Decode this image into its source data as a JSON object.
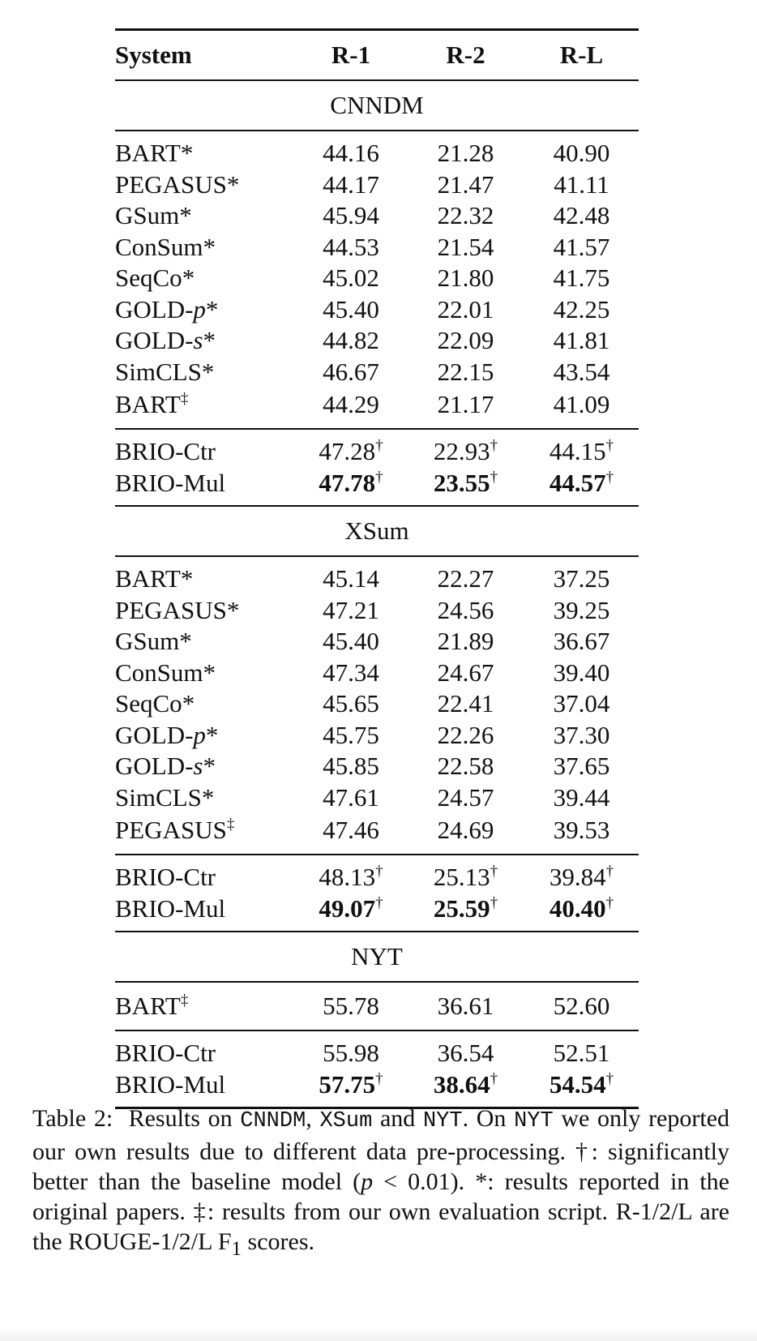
{
  "table": {
    "headers": [
      "System",
      "R-1",
      "R-2",
      "R-L"
    ],
    "sections": [
      {
        "name": "CNNDM",
        "baselines": [
          {
            "system": "BART",
            "system_ital": "",
            "mark": "*",
            "r1": "44.16",
            "r2": "21.28",
            "rl": "40.90"
          },
          {
            "system": "PEGASUS",
            "system_ital": "",
            "mark": "*",
            "r1": "44.17",
            "r2": "21.47",
            "rl": "41.11"
          },
          {
            "system": "GSum",
            "system_ital": "",
            "mark": "*",
            "r1": "45.94",
            "r2": "22.32",
            "rl": "42.48"
          },
          {
            "system": "ConSum",
            "system_ital": "",
            "mark": "*",
            "r1": "44.53",
            "r2": "21.54",
            "rl": "41.57"
          },
          {
            "system": "SeqCo",
            "system_ital": "",
            "mark": "*",
            "r1": "45.02",
            "r2": "21.80",
            "rl": "41.75"
          },
          {
            "system": "GOLD-",
            "system_ital": "p",
            "mark": "*",
            "r1": "45.40",
            "r2": "22.01",
            "rl": "42.25"
          },
          {
            "system": "GOLD-",
            "system_ital": "s",
            "mark": "*",
            "r1": "44.82",
            "r2": "22.09",
            "rl": "41.81"
          },
          {
            "system": "SimCLS",
            "system_ital": "",
            "mark": "*",
            "r1": "46.67",
            "r2": "22.15",
            "rl": "43.54"
          },
          {
            "system": "BART",
            "system_ital": "",
            "mark": "‡",
            "r1": "44.29",
            "r2": "21.17",
            "rl": "41.09"
          }
        ],
        "ours": [
          {
            "system": "BRIO-Ctr",
            "bold": false,
            "r1": "47.28",
            "r2": "22.93",
            "rl": "44.15",
            "dagger": "†"
          },
          {
            "system": "BRIO-Mul",
            "bold": true,
            "r1": "47.78",
            "r2": "23.55",
            "rl": "44.57",
            "dagger": "†"
          }
        ]
      },
      {
        "name": "XSum",
        "baselines": [
          {
            "system": "BART",
            "system_ital": "",
            "mark": "*",
            "r1": "45.14",
            "r2": "22.27",
            "rl": "37.25"
          },
          {
            "system": "PEGASUS",
            "system_ital": "",
            "mark": "*",
            "r1": "47.21",
            "r2": "24.56",
            "rl": "39.25"
          },
          {
            "system": "GSum",
            "system_ital": "",
            "mark": "*",
            "r1": "45.40",
            "r2": "21.89",
            "rl": "36.67"
          },
          {
            "system": "ConSum",
            "system_ital": "",
            "mark": "*",
            "r1": "47.34",
            "r2": "24.67",
            "rl": "39.40"
          },
          {
            "system": "SeqCo",
            "system_ital": "",
            "mark": "*",
            "r1": "45.65",
            "r2": "22.41",
            "rl": "37.04"
          },
          {
            "system": "GOLD-",
            "system_ital": "p",
            "mark": "*",
            "r1": "45.75",
            "r2": "22.26",
            "rl": "37.30"
          },
          {
            "system": "GOLD-",
            "system_ital": "s",
            "mark": "*",
            "r1": "45.85",
            "r2": "22.58",
            "rl": "37.65"
          },
          {
            "system": "SimCLS",
            "system_ital": "",
            "mark": "*",
            "r1": "47.61",
            "r2": "24.57",
            "rl": "39.44"
          },
          {
            "system": "PEGASUS",
            "system_ital": "",
            "mark": "‡",
            "r1": "47.46",
            "r2": "24.69",
            "rl": "39.53"
          }
        ],
        "ours": [
          {
            "system": "BRIO-Ctr",
            "bold": false,
            "r1": "48.13",
            "r2": "25.13",
            "rl": "39.84",
            "dagger": "†"
          },
          {
            "system": "BRIO-Mul",
            "bold": true,
            "r1": "49.07",
            "r2": "25.59",
            "rl": "40.40",
            "dagger": "†"
          }
        ]
      },
      {
        "name": "NYT",
        "baselines": [
          {
            "system": "BART",
            "system_ital": "",
            "mark": "‡",
            "r1": "55.78",
            "r2": "36.61",
            "rl": "52.60"
          }
        ],
        "ours": [
          {
            "system": "BRIO-Ctr",
            "bold": false,
            "r1": "55.98",
            "r2": "36.54",
            "rl": "52.51",
            "dagger": ""
          },
          {
            "system": "BRIO-Mul",
            "bold": true,
            "r1": "57.75",
            "r2": "38.64",
            "rl": "54.54",
            "dagger": "†"
          }
        ]
      }
    ]
  },
  "caption": {
    "label": "Table 2:",
    "t1": "Results on ",
    "ds1": "CNNDM",
    "t2": ", ",
    "ds2": "XSum",
    "t3": " and ",
    "ds3": "NYT",
    "t4": ". On ",
    "ds4": "NYT",
    "t5": " we only reported our own results due to different data pre-processing. †: significantly better than the baseline model (",
    "p_var": "p",
    "t6": " < 0.01). *: results reported in the original papers. ‡: results from our own evaluation script. R-1/2/L are the ROUGE-1/2/L F",
    "sub": "1",
    "t7": " scores."
  }
}
